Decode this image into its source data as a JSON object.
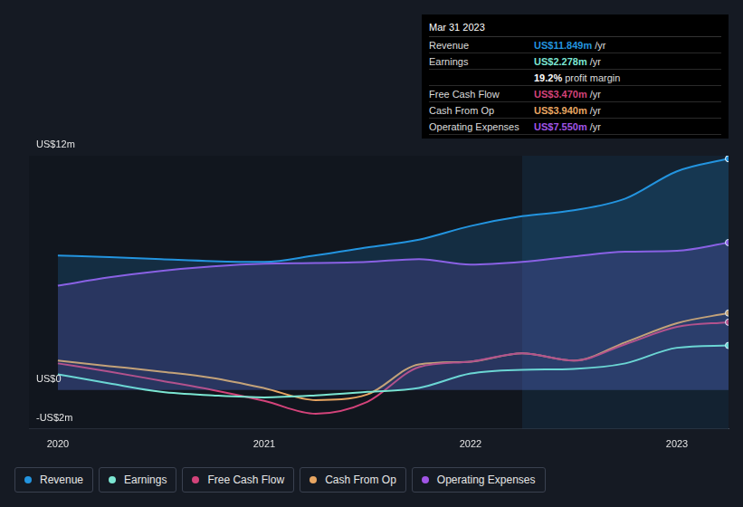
{
  "chart_data": {
    "type": "line",
    "x": [
      2020,
      2020.25,
      2020.5,
      2020.75,
      2021,
      2021.25,
      2021.5,
      2021.75,
      2022,
      2022.25,
      2022.5,
      2022.75,
      2023,
      2023.25
    ],
    "xlim": [
      2019.86,
      2023.25
    ],
    "xticks": [
      2020,
      2021,
      2022,
      2023
    ],
    "ylim": [
      -2,
      12
    ],
    "yticks": [
      {
        "value": -2,
        "label": "-US$2m"
      },
      {
        "value": 0,
        "label": "US$0"
      },
      {
        "value": 12,
        "label": "US$12m"
      }
    ],
    "grid": true,
    "legend": "bottom",
    "marker": "circle",
    "shaded_x": [
      2022.25,
      2023.25
    ],
    "series": [
      {
        "name": "Revenue",
        "color": "#2394df",
        "type": "area",
        "values": [
          6.89,
          6.8,
          6.7,
          6.6,
          6.56,
          6.9,
          7.3,
          7.7,
          8.4,
          8.9,
          9.2,
          9.8,
          11.2,
          11.849
        ]
      },
      {
        "name": "Earnings",
        "color": "#7ce6d2",
        "type": "line",
        "values": [
          0.8,
          0.33,
          -0.1,
          -0.28,
          -0.38,
          -0.28,
          -0.1,
          0.1,
          0.84,
          1.03,
          1.08,
          1.36,
          2.16,
          2.278
        ]
      },
      {
        "name": "Free Cash Flow",
        "color": "#d3437a",
        "type": "line",
        "values": [
          1.36,
          0.94,
          0.47,
          0,
          -0.56,
          -1.22,
          -0.61,
          1.17,
          1.45,
          1.88,
          1.5,
          2.34,
          3.23,
          3.47
        ]
      },
      {
        "name": "Cash From Op",
        "color": "#e8a662",
        "type": "line",
        "values": [
          1.5,
          1.22,
          0.94,
          0.61,
          0.09,
          -0.52,
          -0.23,
          1.31,
          1.45,
          1.88,
          1.5,
          2.44,
          3.42,
          3.94
        ]
      },
      {
        "name": "Operating Expenses",
        "color": "#a155e6",
        "type": "area",
        "values": [
          5.34,
          5.77,
          6.1,
          6.33,
          6.47,
          6.5,
          6.56,
          6.7,
          6.42,
          6.56,
          6.84,
          7.08,
          7.13,
          7.55
        ]
      }
    ],
    "info_box": {
      "title": "Mar 31 2023",
      "rows": [
        {
          "label": "Revenue",
          "value": "US$11.849m",
          "unit": "/yr",
          "color": "#2394df"
        },
        {
          "label": "Earnings",
          "value": "US$2.278m",
          "unit": "/yr",
          "color": "#7ce6d2"
        },
        {
          "label": "",
          "value": "19.2%",
          "unit": "profit margin",
          "color": "#ffffff"
        },
        {
          "label": "Free Cash Flow",
          "value": "US$3.470m",
          "unit": "/yr",
          "color": "#d3437a"
        },
        {
          "label": "Cash From Op",
          "value": "US$3.940m",
          "unit": "/yr",
          "color": "#e8a662"
        },
        {
          "label": "Operating Expenses",
          "value": "US$7.550m",
          "unit": "/yr",
          "color": "#a155e6"
        }
      ]
    }
  }
}
